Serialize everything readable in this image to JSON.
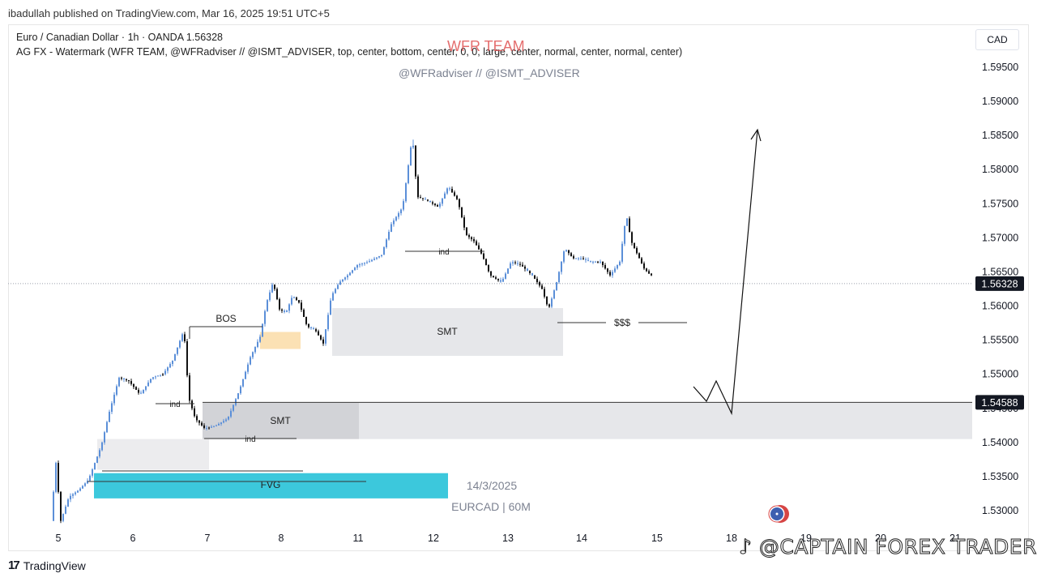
{
  "header": {
    "published": "ibadullah published on TradingView.com, Mar 16, 2025 19:51 UTC+5"
  },
  "legend": {
    "line1": "Euro / Canadian Dollar · 1h · OANDA  1.56328",
    "line2": "AG FX - Watermark (WFR TEAM, @WFRadviser // @ISMT_ADVISER, top, center, bottom, center, 0, 0, large, center, normal, center, normal, center)"
  },
  "watermark": {
    "title": "WFR TEAM",
    "subtitle": "@WFRadviser // @ISMT_ADVISER"
  },
  "currency_button": "CAD",
  "footer": {
    "brand": "TradingView",
    "brand_mark": "17",
    "credit": "@CAPTAIN FOREX TRADER"
  },
  "colors": {
    "bull": "#5b8fd8",
    "bear": "#111111",
    "fvg": "#3cc8dc",
    "smt_zone": "#e6e7ea",
    "ob": "#fbe1b4"
  },
  "chart_data": {
    "type": "candlestick",
    "symbol": "EURCAD",
    "timeframe": "60M",
    "y_axis": {
      "ticks": [
        1.595,
        1.59,
        1.585,
        1.58,
        1.575,
        1.57,
        1.565,
        1.56,
        1.555,
        1.55,
        1.545,
        1.54,
        1.535,
        1.53
      ],
      "ylim": [
        1.5265,
        1.6005
      ]
    },
    "x_axis": {
      "ticks": [
        "5",
        "6",
        "7",
        "8",
        "11",
        "12",
        "13",
        "14",
        "15",
        "18",
        "19",
        "20",
        "21"
      ]
    },
    "last_price": {
      "label": "1.56328",
      "value": 1.56328
    },
    "level_price": {
      "label": "1.54588",
      "value": 1.54588
    },
    "price_path": [
      [
        0,
        1.5285
      ],
      [
        6,
        1.537
      ],
      [
        12,
        1.5285
      ],
      [
        22,
        1.532
      ],
      [
        34,
        1.533
      ],
      [
        46,
        1.5345
      ],
      [
        62,
        1.5395
      ],
      [
        72,
        1.5445
      ],
      [
        84,
        1.5495
      ],
      [
        96,
        1.549
      ],
      [
        110,
        1.547
      ],
      [
        124,
        1.5495
      ],
      [
        138,
        1.55
      ],
      [
        150,
        1.552
      ],
      [
        164,
        1.5565
      ],
      [
        170,
        1.5465
      ],
      [
        178,
        1.5435
      ],
      [
        190,
        1.542
      ],
      [
        204,
        1.5425
      ],
      [
        218,
        1.5435
      ],
      [
        232,
        1.5475
      ],
      [
        246,
        1.5525
      ],
      [
        258,
        1.5555
      ],
      [
        266,
        1.5605
      ],
      [
        274,
        1.5635
      ],
      [
        282,
        1.5595
      ],
      [
        290,
        1.559
      ],
      [
        298,
        1.5615
      ],
      [
        306,
        1.5605
      ],
      [
        316,
        1.557
      ],
      [
        326,
        1.5565
      ],
      [
        336,
        1.5545
      ],
      [
        346,
        1.5615
      ],
      [
        356,
        1.5635
      ],
      [
        366,
        1.5645
      ],
      [
        378,
        1.566
      ],
      [
        392,
        1.5665
      ],
      [
        408,
        1.5675
      ],
      [
        420,
        1.572
      ],
      [
        434,
        1.5745
      ],
      [
        446,
        1.585
      ],
      [
        452,
        1.576
      ],
      [
        464,
        1.5755
      ],
      [
        478,
        1.5745
      ],
      [
        490,
        1.5775
      ],
      [
        502,
        1.5755
      ],
      [
        512,
        1.5705
      ],
      [
        522,
        1.5695
      ],
      [
        532,
        1.5675
      ],
      [
        542,
        1.5645
      ],
      [
        556,
        1.5635
      ],
      [
        568,
        1.5665
      ],
      [
        580,
        1.566
      ],
      [
        594,
        1.5645
      ],
      [
        606,
        1.5625
      ],
      [
        614,
        1.5595
      ],
      [
        624,
        1.5635
      ],
      [
        634,
        1.5685
      ],
      [
        644,
        1.567
      ],
      [
        654,
        1.567
      ],
      [
        666,
        1.5665
      ],
      [
        678,
        1.5665
      ],
      [
        690,
        1.5645
      ],
      [
        702,
        1.5665
      ],
      [
        710,
        1.5735
      ],
      [
        716,
        1.5695
      ],
      [
        724,
        1.5675
      ],
      [
        732,
        1.5655
      ],
      [
        740,
        1.5645
      ]
    ],
    "annotations": [
      {
        "type": "label",
        "text": "BOS"
      },
      {
        "type": "label",
        "text": "ind"
      },
      {
        "type": "label",
        "text": "ind"
      },
      {
        "type": "label",
        "text": "ind"
      },
      {
        "type": "zone",
        "text": "SMT",
        "y_top": 1.5597,
        "y_bottom": 1.5527
      },
      {
        "type": "zone",
        "text": "SMT",
        "y_top": 1.5458,
        "y_bottom": 1.5405
      },
      {
        "type": "zone",
        "text": "FVG",
        "y_top": 1.5355,
        "y_bottom": 1.5318
      },
      {
        "type": "label",
        "text": "$$$",
        "y": 1.5575
      },
      {
        "type": "label",
        "text": "14/3/2025"
      },
      {
        "type": "label",
        "text": "EURCAD | 60M"
      }
    ]
  }
}
